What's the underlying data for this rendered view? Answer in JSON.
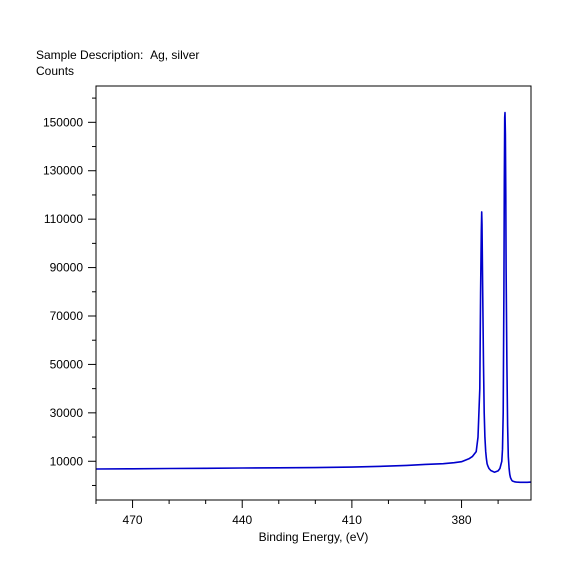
{
  "chart_data": {
    "type": "line",
    "title_label": "Sample Description:",
    "title_value": "Ag, silver",
    "ylabel": "Counts",
    "xlabel": "Binding Energy, (eV)",
    "x_reversed": true,
    "xlim": [
      480,
      361
    ],
    "ylim": [
      -6000,
      165000
    ],
    "x_ticks": [
      470,
      440,
      410,
      380
    ],
    "y_ticks": [
      10000,
      30000,
      50000,
      70000,
      90000,
      110000,
      130000,
      150000
    ],
    "grid": false,
    "legend": "none",
    "line_color": "#0000cc",
    "series": [
      {
        "x": [
          480,
          470,
          460,
          450,
          440,
          430,
          420,
          410,
          400,
          395,
          390,
          385,
          382,
          380,
          378,
          377,
          376,
          375.5,
          375,
          374.8,
          374.6,
          374.5,
          374.4,
          374.2,
          374,
          373.8,
          373.6,
          373.4,
          373.2,
          373,
          372.8,
          372.5,
          372,
          371,
          370,
          369.5,
          369,
          368.8,
          368.6,
          368.4,
          368.3,
          368.2,
          368.1,
          368,
          367.9,
          367.8,
          367.6,
          367.4,
          367.2,
          367,
          366.8,
          366.6,
          366.4,
          366.2,
          366,
          365.5,
          365,
          364,
          362,
          361
        ],
        "y": [
          6800,
          6900,
          7000,
          7100,
          7200,
          7300,
          7400,
          7600,
          8000,
          8300,
          8700,
          9000,
          9400,
          9800,
          11000,
          12000,
          14000,
          20000,
          40000,
          80000,
          105000,
          113000,
          108000,
          80000,
          50000,
          30000,
          20000,
          14000,
          11000,
          9000,
          8000,
          7000,
          6200,
          5500,
          6000,
          7000,
          10000,
          15000,
          30000,
          80000,
          125000,
          152000,
          154000,
          145000,
          120000,
          90000,
          50000,
          25000,
          12000,
          7000,
          4500,
          3200,
          2500,
          2000,
          1800,
          1500,
          1400,
          1300,
          1300,
          1400
        ]
      }
    ]
  }
}
